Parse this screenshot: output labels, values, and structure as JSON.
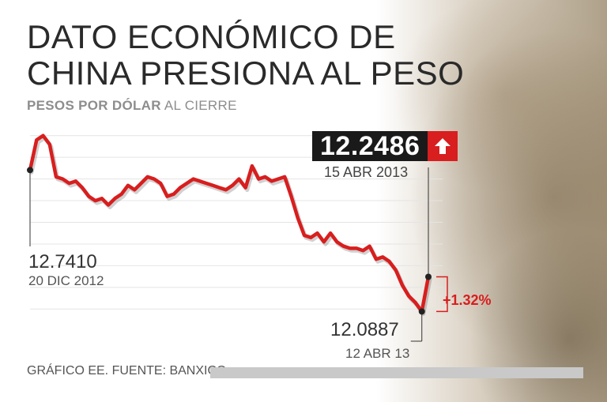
{
  "title": {
    "line1": "DATO ECONÓMICO DE",
    "line2": "CHINA PRESIONA AL PESO"
  },
  "subtitle": {
    "bold": "PESOS POR DÓLAR",
    "rest": "AL CIERRE"
  },
  "callouts": {
    "current_value": "12.2486",
    "current_date": "15 ABR 2013",
    "start_value": "12.7410",
    "start_date": "20 DIC 2012",
    "low_value": "12.0887",
    "low_date": "12 ABR 13",
    "change": "+1.32%"
  },
  "source": "GRÁFICO EE. FUENTE: BANXICO.",
  "colors": {
    "line": "#d81e1e",
    "accent": "#d81e1e",
    "value_box": "#1a1a1a"
  },
  "icons": {
    "change_direction": "arrow-up-icon"
  },
  "chart_data": {
    "type": "line",
    "title": "DATO ECONÓMICO DE CHINA PRESIONA AL PESO",
    "subtitle": "PESOS POR DÓLAR AL CIERRE",
    "ylim": [
      12.05,
      12.95
    ],
    "grid": true,
    "series": [
      {
        "values": [
          12.741,
          12.88,
          12.9,
          12.86,
          12.71,
          12.7,
          12.68,
          12.69,
          12.66,
          12.62,
          12.6,
          12.61,
          12.58,
          12.61,
          12.63,
          12.67,
          12.65,
          12.68,
          12.71,
          12.7,
          12.68,
          12.62,
          12.63,
          12.66,
          12.68,
          12.7,
          12.69,
          12.68,
          12.67,
          12.66,
          12.65,
          12.67,
          12.7,
          12.66,
          12.76,
          12.7,
          12.71,
          12.69,
          12.7,
          12.71,
          12.62,
          12.52,
          12.44,
          12.43,
          12.45,
          12.41,
          12.45,
          12.41,
          12.39,
          12.38,
          12.38,
          12.37,
          12.39,
          12.33,
          12.34,
          12.32,
          12.28,
          12.21,
          12.16,
          12.13,
          12.0887,
          12.2486
        ]
      }
    ],
    "annotations": [
      {
        "label": "12.7410",
        "date": "20 DIC 2012",
        "y": 12.741
      },
      {
        "label": "12.2486",
        "date": "15 ABR 2013",
        "y": 12.2486
      },
      {
        "label": "12.0887",
        "date": "12 ABR 13",
        "y": 12.0887
      },
      {
        "label": "+1.32%"
      }
    ]
  }
}
